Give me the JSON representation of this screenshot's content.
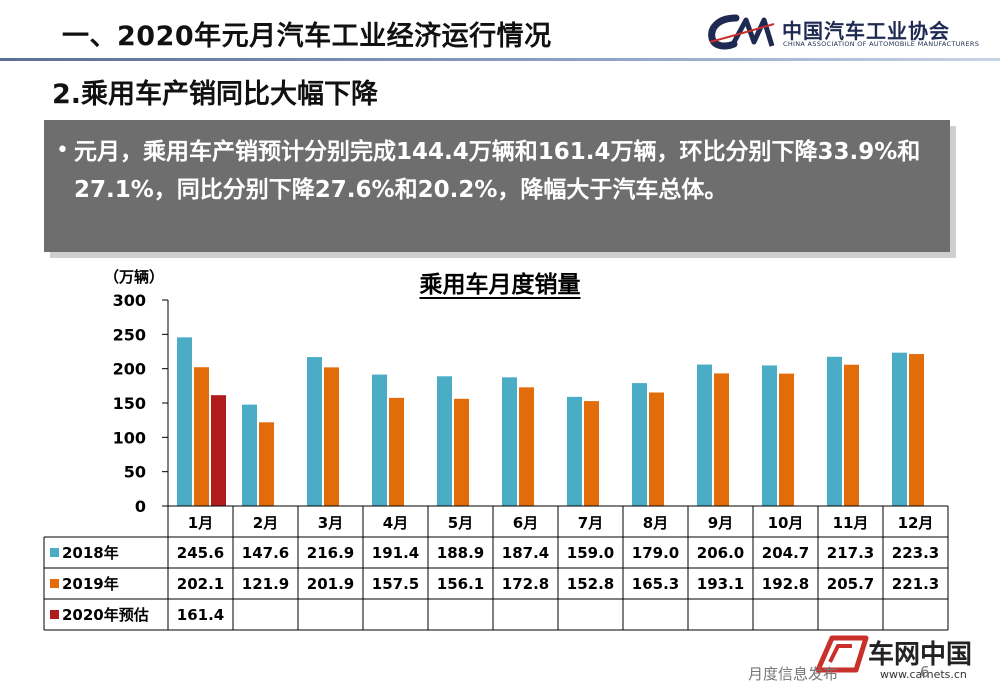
{
  "header": {
    "main_title": "一、2020年元月汽车工业经济运行情况",
    "org_name_cn": "中国汽车工业协会",
    "org_name_en": "CHINA ASSOCIATION OF AUTOMOBILE MANUFACTURERS"
  },
  "section_title": "2.乘用车产销同比大幅下降",
  "bullet": {
    "text": "元月，乘用车产销预计分别完成144.4万辆和161.4万辆，环比分别下降33.9%和27.1%，同比分别下降27.6%和20.2%，降幅大于汽车总体。"
  },
  "colors": {
    "series_2018": "#4bacc6",
    "series_2019": "#e36c0a",
    "series_2020": "#b01b1b",
    "bullet_bg": "#6e6e6e",
    "brand_navy": "#1f2a52"
  },
  "chart_data": {
    "type": "bar",
    "title": "乘用车月度销量",
    "ylabel": "（万辆）",
    "ylim": [
      0,
      300
    ],
    "yticks": [
      0,
      50,
      100,
      150,
      200,
      250,
      300
    ],
    "categories": [
      "1月",
      "2月",
      "3月",
      "4月",
      "5月",
      "6月",
      "7月",
      "8月",
      "9月",
      "10月",
      "11月",
      "12月"
    ],
    "series": [
      {
        "name": "2018年",
        "values": [
          245.6,
          147.6,
          216.9,
          191.4,
          188.9,
          187.4,
          159.0,
          179.0,
          206.0,
          204.7,
          217.3,
          223.3
        ],
        "color": "#4bacc6"
      },
      {
        "name": "2019年",
        "values": [
          202.1,
          121.9,
          201.9,
          157.5,
          156.1,
          172.8,
          152.8,
          165.3,
          193.1,
          192.8,
          205.7,
          221.3
        ],
        "color": "#e36c0a"
      },
      {
        "name": "2020年预估",
        "values": [
          161.4,
          null,
          null,
          null,
          null,
          null,
          null,
          null,
          null,
          null,
          null,
          null
        ],
        "color": "#b01b1b"
      }
    ],
    "data_table": true,
    "legend": "in data table"
  },
  "footer": {
    "label": "月度信息发布",
    "page": "6",
    "watermark_cn": "车网中国",
    "watermark_url": "www.carnets.cn"
  }
}
